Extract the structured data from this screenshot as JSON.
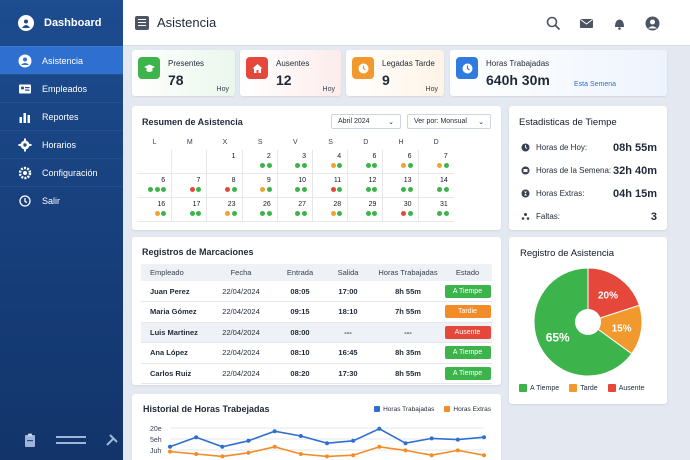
{
  "sidebar": {
    "brand": "Dashboard",
    "items": [
      {
        "label": "Asistencia",
        "icon": "user-icon"
      },
      {
        "label": "Empleados",
        "icon": "id-card-icon"
      },
      {
        "label": "Reportes",
        "icon": "bar-chart-icon"
      },
      {
        "label": "Horarios",
        "icon": "gear-icon"
      },
      {
        "label": "Configuración",
        "icon": "cog-icon"
      },
      {
        "label": "Salir",
        "icon": "power-icon"
      }
    ]
  },
  "header": {
    "title": "Asistencia"
  },
  "stats": [
    {
      "label": "Presentes",
      "value": "78",
      "sub": "Hoy",
      "color": "#3cb44b",
      "bg": "#eaf7ec",
      "icon": "graduation-icon"
    },
    {
      "label": "Ausentes",
      "value": "12",
      "sub": "Hoy",
      "color": "#e5483b",
      "bg": "#fdecec",
      "icon": "home-icon"
    },
    {
      "label": "Legadas Tarde",
      "value": "9",
      "sub": "Hoy",
      "color": "#f2992e",
      "bg": "#fef4e6",
      "icon": "clock-icon"
    },
    {
      "label": "Horas Trabajadas",
      "value": "640h 30m",
      "sub": "Esta Semena",
      "color": "#2f7be0",
      "bg": "#eaf2fd",
      "icon": "time-icon"
    }
  ],
  "calendar": {
    "title": "Resumen de Asistencia",
    "month": "Abril 2024",
    "view": "Ver por: Monsual",
    "weekdays": [
      "L",
      "M",
      "X",
      "S",
      "V",
      "S",
      "D",
      "H",
      "D"
    ],
    "rows": [
      [
        {
          "d": "",
          "dots": []
        },
        {
          "d": "",
          "dots": []
        },
        {
          "d": "1",
          "dots": []
        },
        {
          "d": "2",
          "dots": [
            "g",
            "g"
          ]
        },
        {
          "d": "3",
          "dots": [
            "g",
            "g"
          ]
        },
        {
          "d": "4",
          "dots": [
            "o",
            "g"
          ]
        },
        {
          "d": "6",
          "dots": [
            "g",
            "g"
          ]
        },
        {
          "d": "6",
          "dots": [
            "o",
            "g"
          ]
        },
        {
          "d": "7",
          "dots": [
            "o",
            "g"
          ]
        }
      ],
      [
        {
          "d": "6",
          "dots": [
            "g",
            "g",
            "g"
          ]
        },
        {
          "d": "7",
          "dots": [
            "r",
            "g"
          ]
        },
        {
          "d": "8",
          "dots": [
            "r",
            "g"
          ]
        },
        {
          "d": "9",
          "dots": [
            "o",
            "g"
          ]
        },
        {
          "d": "10",
          "dots": [
            "g",
            "g"
          ]
        },
        {
          "d": "11",
          "dots": [
            "r",
            "g"
          ]
        },
        {
          "d": "12",
          "dots": [
            "g",
            "g"
          ]
        },
        {
          "d": "13",
          "dots": [
            "g",
            "g"
          ]
        },
        {
          "d": "14",
          "dots": [
            "g",
            "g"
          ]
        }
      ],
      [
        {
          "d": "16",
          "dots": [
            "o",
            "g"
          ]
        },
        {
          "d": "17",
          "dots": [
            "g",
            "g"
          ]
        },
        {
          "d": "23",
          "dots": [
            "o",
            "g"
          ]
        },
        {
          "d": "26",
          "dots": [
            "g",
            "g"
          ]
        },
        {
          "d": "27",
          "dots": [
            "g",
            "g"
          ]
        },
        {
          "d": "28",
          "dots": [
            "o",
            "g"
          ]
        },
        {
          "d": "29",
          "dots": [
            "g",
            "g"
          ]
        },
        {
          "d": "30",
          "dots": [
            "r",
            "g"
          ]
        },
        {
          "d": "31",
          "dots": [
            "g",
            "g"
          ]
        }
      ]
    ]
  },
  "dot_colors": {
    "g": "#3cb44b",
    "o": "#f2a22e",
    "r": "#e5483b"
  },
  "weekstats": {
    "title": "Estadisticas de Tiempe",
    "rows": [
      {
        "label": "Horas de Hoy:",
        "value": "08h 55m",
        "icon": "clock-icon"
      },
      {
        "label": "Horas de la Semena:",
        "value": "32h 40m",
        "icon": "calendar-icon"
      },
      {
        "label": "Horas Extras:",
        "value": "04h 15m",
        "icon": "hourglass-icon"
      },
      {
        "label": "Faltas:",
        "value": "3",
        "icon": "people-icon"
      }
    ]
  },
  "records": {
    "title": "Registros de Marcaciones",
    "columns": [
      "Empleado",
      "Fecha",
      "Entrada",
      "Salida",
      "Horas Trabajadas",
      "Estado"
    ],
    "rows": [
      {
        "name": "Juan Perez",
        "date": "22/04/2024",
        "in": "08:05",
        "out": "17:00",
        "hours": "8h 55m",
        "status": "A Tiempe",
        "color": "#3cb44b"
      },
      {
        "name": "Maria Gómez",
        "date": "22/04/2024",
        "in": "09:15",
        "out": "18:10",
        "hours": "7h 55m",
        "status": "Tardie",
        "color": "#f28c28"
      },
      {
        "name": "Luis Martinez",
        "date": "22/04/2024",
        "in": "08:00",
        "out": "---",
        "hours": "---",
        "status": "Ausente",
        "color": "#e5483b"
      },
      {
        "name": "Ana López",
        "date": "22/04/2024",
        "in": "08:10",
        "out": "16:45",
        "hours": "8h 35m",
        "status": "A Tiempe",
        "color": "#3cb44b"
      },
      {
        "name": "Carlos Ruiz",
        "date": "22/04/2024",
        "in": "08:20",
        "out": "17:30",
        "hours": "8h 55m",
        "status": "A Tiempe",
        "color": "#3cb44b"
      }
    ]
  },
  "pie": {
    "title": "Registro de Asistencia",
    "legend": [
      "A Tiempe",
      "Tarde",
      "Ausente"
    ]
  },
  "history": {
    "title": "Historial de Horas Trabejadas",
    "legend": [
      "Horas Trabajadas",
      "Horas Extras"
    ]
  },
  "chart_data": [
    {
      "type": "pie",
      "title": "Registro de Asistencia",
      "series": [
        {
          "name": "A Tiempe",
          "value": 65,
          "color": "#3cb44b"
        },
        {
          "name": "Tarde",
          "value": 15,
          "color": "#f2992e"
        },
        {
          "name": "Ausente",
          "value": 20,
          "color": "#e5483b"
        }
      ]
    },
    {
      "type": "line",
      "title": "Historial de Horas Trabejadas",
      "yticks": [
        "20e",
        "5eh",
        "Juh"
      ],
      "x": [
        1,
        2,
        3,
        4,
        5,
        6,
        7,
        8,
        9,
        10,
        11,
        12,
        13
      ],
      "series": [
        {
          "name": "Horas Trabajadas",
          "color": "#2f6fd0",
          "values": [
            11,
            19,
            11,
            16,
            24,
            20,
            14,
            16,
            26,
            14,
            18,
            17,
            19
          ]
        },
        {
          "name": "Horas Extras",
          "color": "#f28c28",
          "values": [
            7,
            5,
            3,
            6,
            11,
            5,
            3,
            4,
            11,
            8,
            4,
            8,
            4
          ]
        }
      ],
      "ylim": [
        0,
        30
      ]
    }
  ]
}
